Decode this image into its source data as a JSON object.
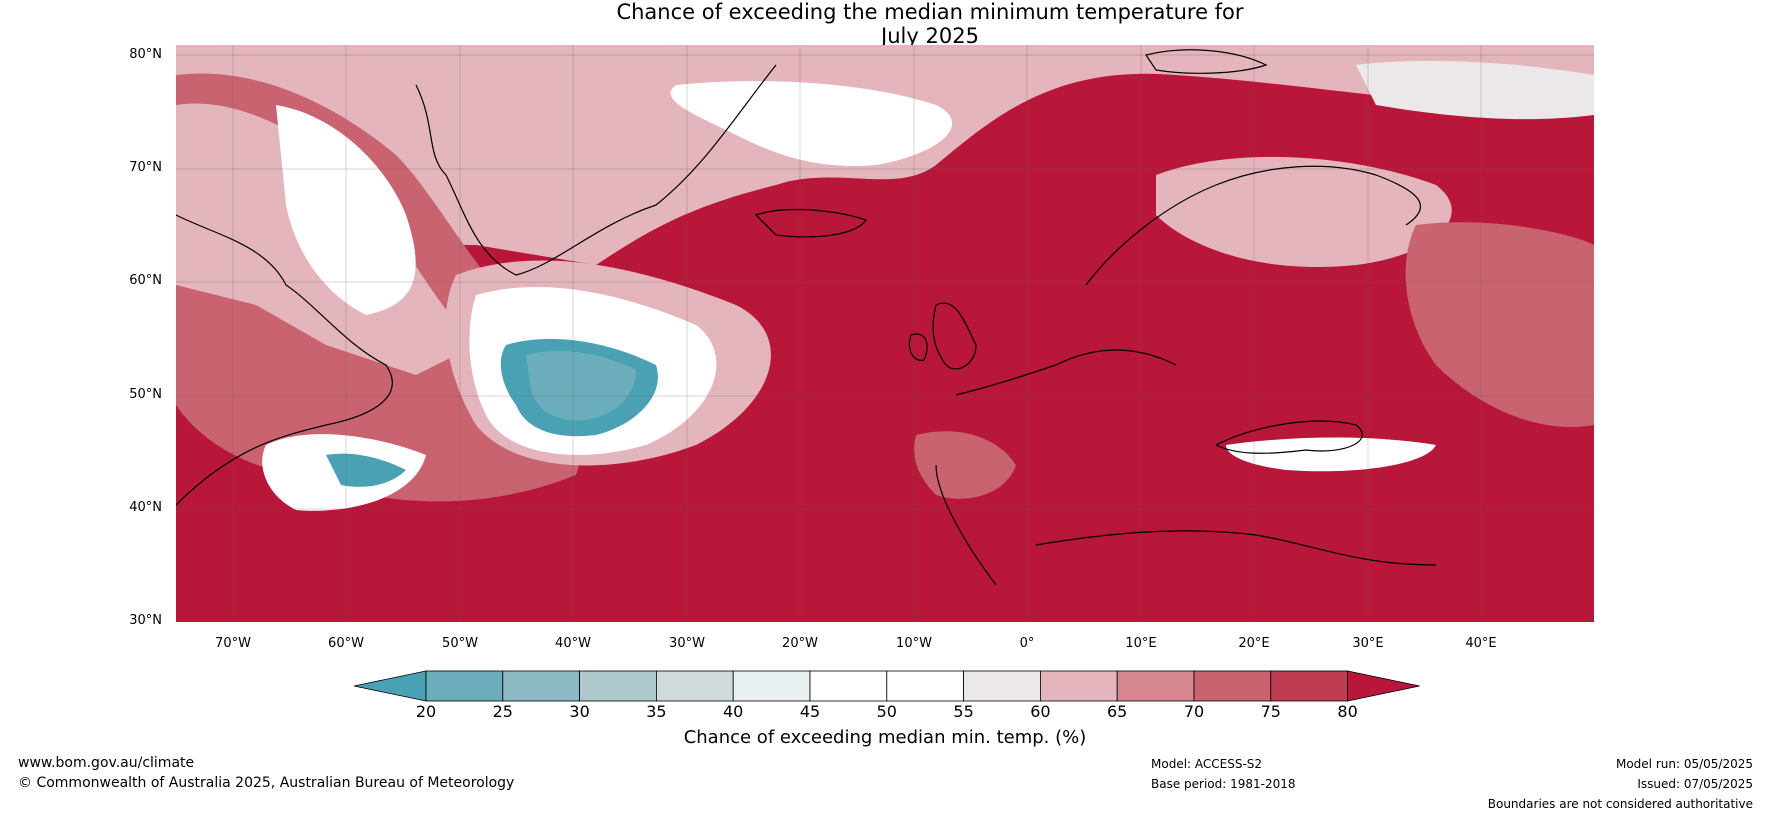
{
  "title": {
    "line1": "Chance of exceeding the median minimum temperature for",
    "line2": "July 2025"
  },
  "lat_labels": [
    "80°N",
    "70°N",
    "60°N",
    "50°N",
    "40°N",
    "30°N"
  ],
  "lon_labels": [
    "70°W",
    "60°W",
    "50°W",
    "40°W",
    "30°W",
    "20°W",
    "10°W",
    "0°",
    "10°E",
    "20°E",
    "30°E",
    "40°E"
  ],
  "colorbar": {
    "ticks": [
      "20",
      "25",
      "30",
      "35",
      "40",
      "45",
      "50",
      "55",
      "60",
      "65",
      "70",
      "75",
      "80"
    ],
    "colors": [
      "#4aa1b4",
      "#6badbb",
      "#8cbac4",
      "#adc9cc",
      "#d0dadc",
      "#e9f0f1",
      "#ffffff",
      "#ffffff",
      "#ece8ea",
      "#e4b5bc",
      "#d6868f",
      "#c96370",
      "#be3d52",
      "#b8173a"
    ],
    "label": "Chance of exceeding median min. temp. (%)"
  },
  "map_colors": {
    "ocean_high": "#b8173a",
    "mid": "#c96370",
    "light": "#e4b5bc",
    "neutral": "#ffffff",
    "low": "#4aa1b4",
    "coast": "#000000",
    "border": "#808080"
  },
  "footer": {
    "url": "www.bom.gov.au/climate",
    "copyright": "© Commonwealth of Australia 2025, Australian Bureau of Meteorology",
    "model": "Model: ACCESS-S2",
    "base_period": "Base period: 1981-2018",
    "model_run": "Model run: 05/05/2025",
    "issued": "Issued: 07/05/2025",
    "disclaimer": "Boundaries are not considered authoritative"
  }
}
